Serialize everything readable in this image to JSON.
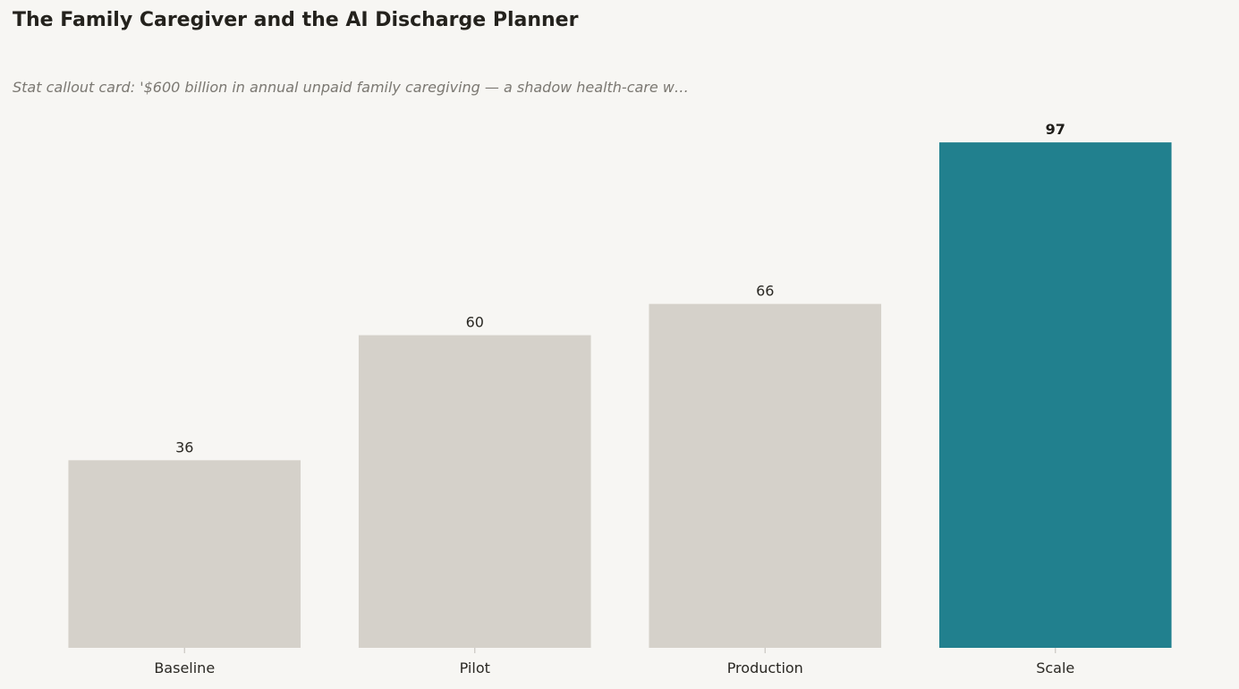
{
  "chart_data": {
    "type": "bar",
    "title": "The Family Caregiver and the AI Discharge Planner",
    "subtitle": "Stat callout card: '$600 billion in annual unpaid family caregiving — a shadow health-care w…",
    "categories": [
      "Baseline",
      "Pilot",
      "Production",
      "Scale"
    ],
    "values": [
      36,
      60,
      66,
      97
    ],
    "value_labels": [
      "36",
      "60",
      "66",
      "97"
    ],
    "highlight_index": 3,
    "ylim": [
      0,
      102
    ],
    "grid": false,
    "legend": "none",
    "colors": {
      "bar": "#d5d1ca",
      "highlight": "#21808e",
      "tick": "#c9c6c0"
    }
  }
}
